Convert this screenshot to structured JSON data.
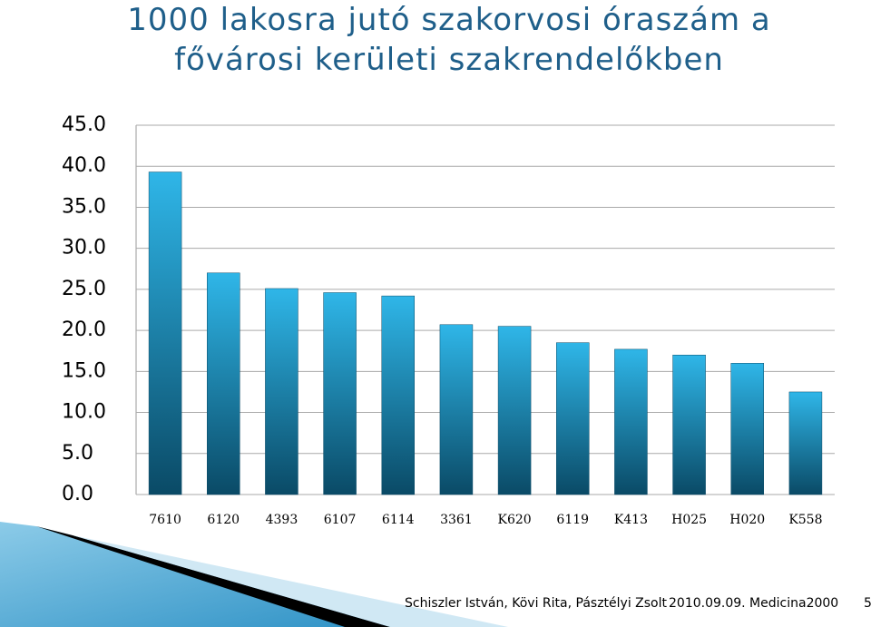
{
  "chart_data": {
    "type": "bar",
    "title": "1000 lakosra jutó szakorvosi óraszám a fővárosi kerületi szakrendelőkben",
    "categories": [
      "7610",
      "6120",
      "4393",
      "6107",
      "6114",
      "3361",
      "K620",
      "6119",
      "K413",
      "H025",
      "H020",
      "K558"
    ],
    "values": [
      39.3,
      27.0,
      25.1,
      24.6,
      24.2,
      20.7,
      20.5,
      18.5,
      17.7,
      17.0,
      16.0,
      12.5
    ],
    "color": "#2fb6e8",
    "ylim": [
      0,
      45
    ],
    "yticks": [
      {
        "value": 0,
        "label": "0.0"
      },
      {
        "value": 5,
        "label": "5.0"
      },
      {
        "value": 10,
        "label": "10.0"
      },
      {
        "value": 15,
        "label": "15.0"
      },
      {
        "value": 20,
        "label": "20.0"
      },
      {
        "value": 25,
        "label": "25.0"
      },
      {
        "value": 30,
        "label": "30.0"
      },
      {
        "value": 35,
        "label": "35.0"
      },
      {
        "value": 40,
        "label": "40.0"
      },
      {
        "value": 45,
        "label": "45.0"
      }
    ],
    "grid": true
  },
  "footer": {
    "authors": "Schiszler István, Kövi Rita, Pásztélyi Zsolt",
    "date": "2010.09.09. Medicina2000",
    "page": "5"
  }
}
